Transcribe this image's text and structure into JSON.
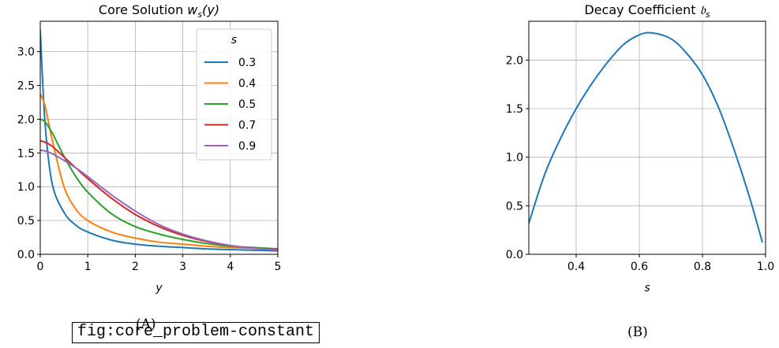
{
  "figure_label": "fig:core_problem-constant",
  "captions": {
    "a": "(A)",
    "b": "(B)"
  },
  "chart_data": [
    {
      "type": "line",
      "title": "Core Solution w_s(y)",
      "title_parts": {
        "main": "Core Solution ",
        "sym": "w",
        "sub": "s",
        "tail": "(y)"
      },
      "xlabel": "y",
      "ylabel": "",
      "xlim": [
        0,
        5
      ],
      "ylim": [
        0,
        3.45
      ],
      "xticks": [
        0,
        1,
        2,
        3,
        4,
        5
      ],
      "xtick_labels": [
        "0",
        "1",
        "2",
        "3",
        "4",
        "5"
      ],
      "yticks": [
        0,
        0.5,
        1,
        1.5,
        2,
        2.5,
        3
      ],
      "ytick_labels": [
        "0.0",
        "0.5",
        "1.0",
        "1.5",
        "2.0",
        "2.5",
        "3.0"
      ],
      "grid": true,
      "legend": {
        "title": "s",
        "placement": "top-right"
      },
      "x": [
        0,
        0.1,
        0.25,
        0.5,
        0.75,
        1,
        1.5,
        2,
        2.5,
        3,
        3.5,
        4,
        4.5,
        5
      ],
      "series": [
        {
          "name": "0.3",
          "color": "#1f77b4",
          "values": [
            3.32,
            1.95,
            1.05,
            0.62,
            0.43,
            0.33,
            0.21,
            0.15,
            0.12,
            0.1,
            0.08,
            0.07,
            0.06,
            0.05
          ]
        },
        {
          "name": "0.4",
          "color": "#ff7f0e",
          "values": [
            2.37,
            2.2,
            1.7,
            1.0,
            0.67,
            0.5,
            0.33,
            0.24,
            0.18,
            0.15,
            0.12,
            0.1,
            0.09,
            0.07
          ]
        },
        {
          "name": "0.5",
          "color": "#2ca02c",
          "values": [
            2.0,
            1.96,
            1.8,
            1.45,
            1.15,
            0.92,
            0.6,
            0.41,
            0.3,
            0.22,
            0.16,
            0.12,
            0.1,
            0.08
          ]
        },
        {
          "name": "0.7",
          "color": "#d62728",
          "values": [
            1.68,
            1.66,
            1.6,
            1.44,
            1.28,
            1.12,
            0.83,
            0.59,
            0.41,
            0.28,
            0.19,
            0.13,
            0.09,
            0.07
          ]
        },
        {
          "name": "0.9",
          "color": "#9467bd",
          "values": [
            1.54,
            1.53,
            1.49,
            1.39,
            1.28,
            1.15,
            0.88,
            0.64,
            0.44,
            0.3,
            0.2,
            0.13,
            0.09,
            0.06
          ]
        }
      ]
    },
    {
      "type": "line",
      "title": "Decay Coefficient b_s",
      "title_parts": {
        "main": "Decay Coefficient ",
        "sym": "𝔟",
        "sub": "s",
        "tail": ""
      },
      "xlabel": "s",
      "ylabel": "",
      "xlim": [
        0.25,
        1.0
      ],
      "ylim": [
        0,
        2.4
      ],
      "xticks": [
        0.4,
        0.6,
        0.8,
        1.0
      ],
      "xtick_labels": [
        "0.4",
        "0.6",
        "0.8",
        "1.0"
      ],
      "yticks": [
        0,
        0.5,
        1,
        1.5,
        2
      ],
      "ytick_labels": [
        "0.0",
        "0.5",
        "1.0",
        "1.5",
        "2.0"
      ],
      "grid": true,
      "x": [
        0.25,
        0.3,
        0.35,
        0.4,
        0.45,
        0.5,
        0.55,
        0.6,
        0.64,
        0.7,
        0.75,
        0.8,
        0.85,
        0.9,
        0.95,
        0.99
      ],
      "series": [
        {
          "name": "",
          "color": "#1f77b4",
          "values": [
            0.32,
            0.82,
            1.19,
            1.5,
            1.76,
            1.98,
            2.16,
            2.26,
            2.28,
            2.22,
            2.07,
            1.85,
            1.52,
            1.08,
            0.58,
            0.12
          ]
        }
      ]
    }
  ]
}
